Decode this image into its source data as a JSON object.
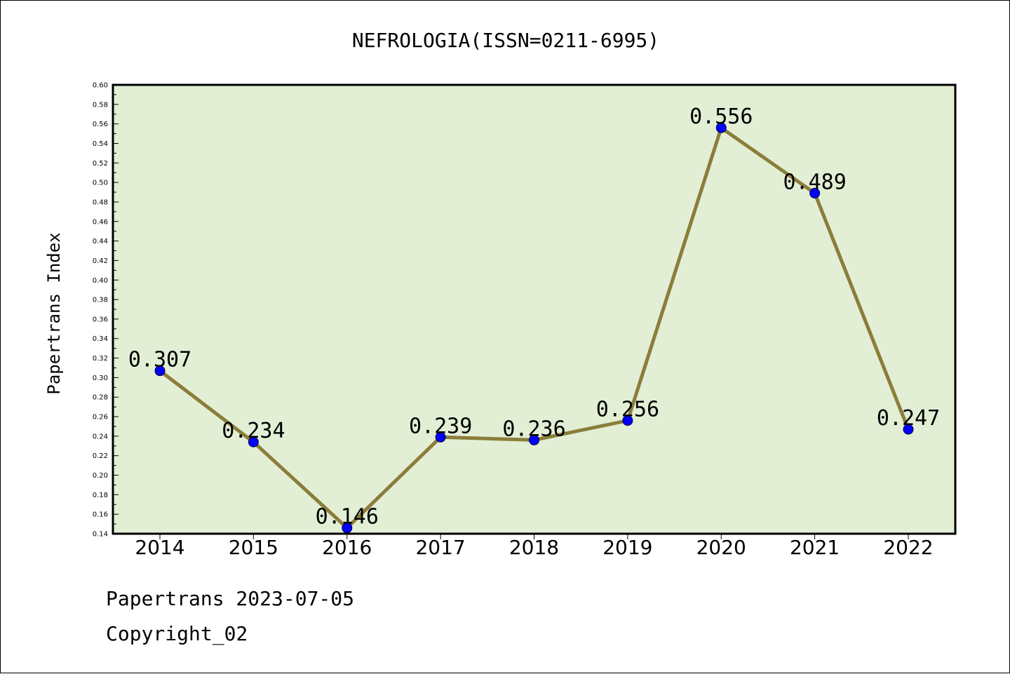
{
  "chart_data": {
    "type": "line",
    "title": "NEFROLOGIA(ISSN=0211-6995)",
    "xlabel": "",
    "ylabel": "Papertrans Index",
    "categories": [
      "2014",
      "2015",
      "2016",
      "2017",
      "2018",
      "2019",
      "2020",
      "2021",
      "2022"
    ],
    "values": [
      0.307,
      0.234,
      0.146,
      0.239,
      0.236,
      0.256,
      0.556,
      0.489,
      0.247
    ],
    "data_labels": [
      "0.307",
      "0.234",
      "0.146",
      "0.239",
      "0.236",
      "0.256",
      "0.556",
      "0.489",
      "0.247"
    ],
    "ylim": [
      0.14,
      0.6
    ],
    "yticks": [
      "0.14",
      "0.16",
      "0.18",
      "0.20",
      "0.22",
      "0.24",
      "0.26",
      "0.28",
      "0.30",
      "0.32",
      "0.34",
      "0.36",
      "0.38",
      "0.40",
      "0.42",
      "0.44",
      "0.46",
      "0.48",
      "0.50",
      "0.52",
      "0.54",
      "0.56",
      "0.58",
      "0.60"
    ],
    "grid": false,
    "colors": {
      "plot_background": "#e2efd5",
      "line": "#8b7d3a",
      "marker": "#0000ff"
    }
  },
  "footer": {
    "date_line": "Papertrans 2023-07-05",
    "copyright": "Copyright_02"
  }
}
